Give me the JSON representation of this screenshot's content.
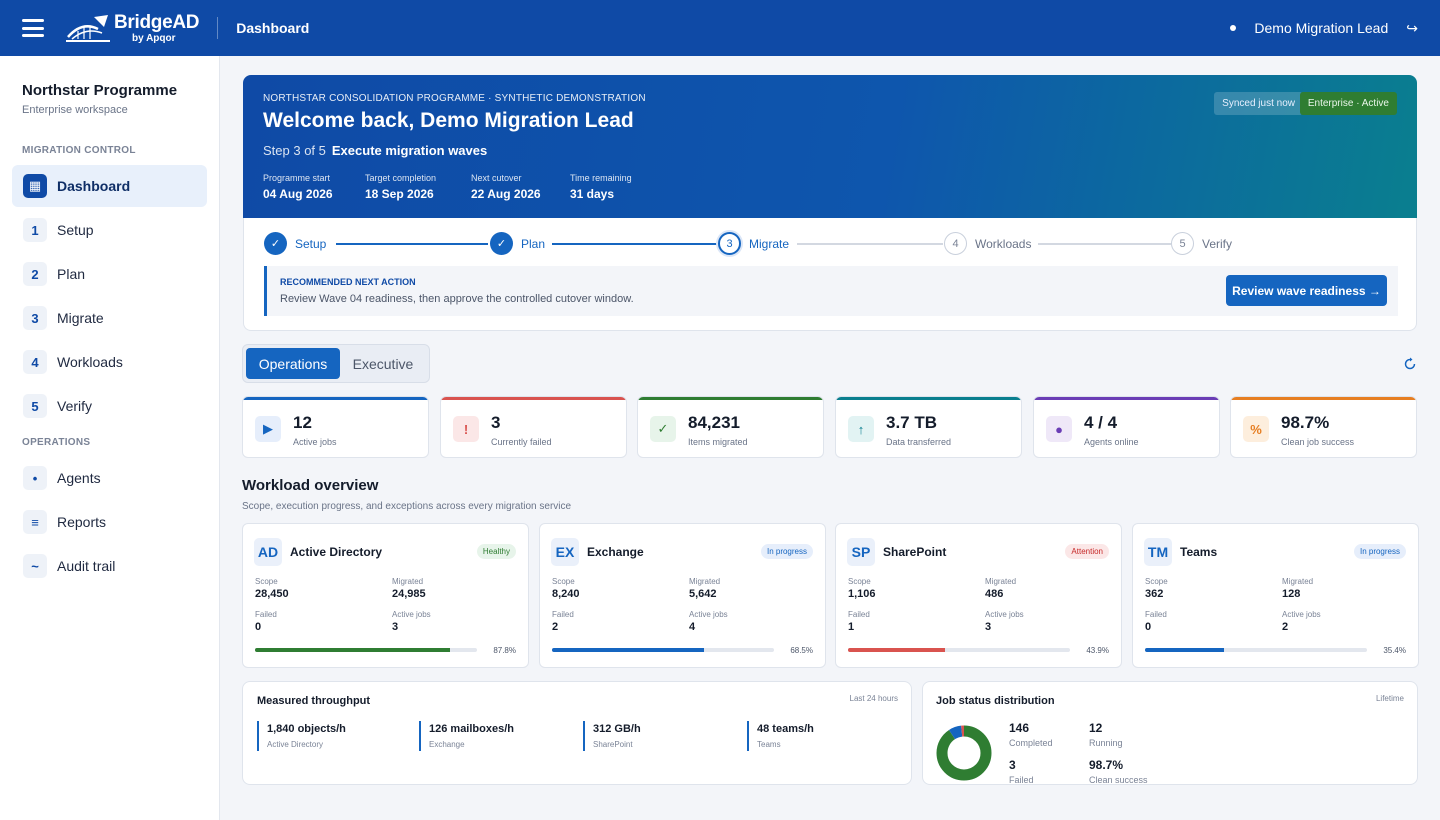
{
  "colors": {
    "brand": "#0f4aa6",
    "accent": "#1565c0",
    "success": "#2f7d32",
    "danger": "#c62828",
    "teal": "#0a7f8f",
    "purple": "#6a3db5",
    "orange": "#e67e22"
  },
  "topbar": {
    "menu_icon": "hamburger-icon",
    "logo_name": "BridgeAD",
    "logo_sub": "by Apqor",
    "page_title": "Dashboard",
    "user_name": "Demo Migration Lead",
    "logout_icon": "logout-arrow-icon",
    "logout_glyph": "↪"
  },
  "sidebar": {
    "org_name": "Northstar Programme",
    "org_sub": "Enterprise workspace",
    "section_migration": "MIGRATION CONTROL",
    "section_operations": "OPERATIONS",
    "items": [
      {
        "badge": "▦",
        "label": "Dashboard",
        "active": true
      },
      {
        "badge": "1",
        "label": "Setup"
      },
      {
        "badge": "2",
        "label": "Plan"
      },
      {
        "badge": "3",
        "label": "Migrate"
      },
      {
        "badge": "4",
        "label": "Workloads"
      },
      {
        "badge": "5",
        "label": "Verify"
      },
      {
        "badge": "•",
        "label": "Agents"
      },
      {
        "badge": "≡",
        "label": "Reports"
      },
      {
        "badge": "~",
        "label": "Audit trail"
      }
    ]
  },
  "hero": {
    "eyebrow": "NORTHSTAR CONSOLIDATION PROGRAMME · SYNTHETIC DEMONSTRATION",
    "title": "Welcome back, Demo Migration Lead",
    "step_prefix": "Step 3 of 5",
    "step_name": "Execute migration waves",
    "sync_pill": "Synced just now",
    "plan_pill": "Enterprise · Active",
    "meta": [
      {
        "label": "Programme start",
        "value": "04 Aug 2026"
      },
      {
        "label": "Target completion",
        "value": "18 Sep 2026"
      },
      {
        "label": "Next cutover",
        "value": "22 Aug 2026"
      },
      {
        "label": "Time remaining",
        "value": "31 days"
      }
    ]
  },
  "stepper": {
    "steps": [
      {
        "mark": "✓",
        "label": "Setup",
        "state": "done"
      },
      {
        "mark": "✓",
        "label": "Plan",
        "state": "done"
      },
      {
        "mark": "3",
        "label": "Migrate",
        "state": "current"
      },
      {
        "mark": "4",
        "label": "Workloads",
        "state": "todo"
      },
      {
        "mark": "5",
        "label": "Verify",
        "state": "todo"
      }
    ]
  },
  "next_action": {
    "heading": "RECOMMENDED NEXT ACTION",
    "text": "Review Wave 04 readiness, then approve the controlled cutover window.",
    "button": "Review wave readiness →"
  },
  "tabs": [
    {
      "label": "Operations",
      "active": true
    },
    {
      "label": "Executive",
      "active": false
    }
  ],
  "refresh_icon": "refresh-icon",
  "kpis": [
    {
      "icon": "▶",
      "icon_name": "play-icon",
      "value": "12",
      "label": "Active jobs",
      "color": "#1565c0",
      "bg": "#e6eefb"
    },
    {
      "icon": "!",
      "icon_name": "alert-icon",
      "value": "3",
      "label": "Currently failed",
      "color": "#d9534f",
      "bg": "#fbe7e7"
    },
    {
      "icon": "✓",
      "icon_name": "check-icon",
      "value": "84,231",
      "label": "Items migrated",
      "color": "#2f7d32",
      "bg": "#e7f4ea"
    },
    {
      "icon": "↑",
      "icon_name": "upload-arrow-icon",
      "value": "3.7 TB",
      "label": "Data transferred",
      "color": "#0a7f8f",
      "bg": "#e2f3f3"
    },
    {
      "icon": "●",
      "icon_name": "agent-dot-icon",
      "value": "4 / 4",
      "label": "Agents online",
      "color": "#6a3db5",
      "bg": "#efe8f8"
    },
    {
      "icon": "%",
      "icon_name": "percent-icon",
      "value": "98.7%",
      "label": "Clean job success",
      "color": "#e67e22",
      "bg": "#fdeedd"
    }
  ],
  "workload_overview": {
    "title": "Workload overview",
    "subtitle": "Scope, execution progress, and exceptions across every migration service",
    "labels": {
      "scope": "Scope",
      "migrated": "Migrated",
      "failed": "Failed",
      "active_jobs": "Active jobs"
    },
    "cards": [
      {
        "abbr": "AD",
        "name": "Active Directory",
        "status": "Healthy",
        "status_kind": "healthy",
        "scope": "28,450",
        "migrated": "24,985",
        "failed": "0",
        "active_jobs": "3",
        "progress": 87.8,
        "progress_label": "87.8%",
        "bar_color": "#2f7d32"
      },
      {
        "abbr": "EX",
        "name": "Exchange",
        "status": "In progress",
        "status_kind": "progress",
        "scope": "8,240",
        "migrated": "5,642",
        "failed": "2",
        "active_jobs": "4",
        "progress": 68.5,
        "progress_label": "68.5%",
        "bar_color": "#1565c0"
      },
      {
        "abbr": "SP",
        "name": "SharePoint",
        "status": "Attention",
        "status_kind": "attention",
        "scope": "1,106",
        "migrated": "486",
        "failed": "1",
        "active_jobs": "3",
        "progress": 43.9,
        "progress_label": "43.9%",
        "bar_color": "#d9534f"
      },
      {
        "abbr": "TM",
        "name": "Teams",
        "status": "In progress",
        "status_kind": "progress",
        "scope": "362",
        "migrated": "128",
        "failed": "0",
        "active_jobs": "2",
        "progress": 35.4,
        "progress_label": "35.4%",
        "bar_color": "#1565c0"
      }
    ]
  },
  "throughput": {
    "title": "Measured throughput",
    "hint": "Last 24 hours",
    "items": [
      {
        "value": "1,840 objects/h",
        "label": "Active Directory"
      },
      {
        "value": "126 mailboxes/h",
        "label": "Exchange"
      },
      {
        "value": "312 GB/h",
        "label": "SharePoint"
      },
      {
        "value": "48 teams/h",
        "label": "Teams"
      }
    ]
  },
  "job_status": {
    "title": "Job status distribution",
    "hint": "Lifetime",
    "stats": [
      {
        "value": "146",
        "label": "Completed"
      },
      {
        "value": "12",
        "label": "Running"
      },
      {
        "value": "3",
        "label": "Failed"
      },
      {
        "value": "98.7%",
        "label": "Clean success"
      }
    ],
    "donut": [
      {
        "name": "Completed",
        "value": 146,
        "color": "#2f7d32"
      },
      {
        "name": "Running",
        "value": 12,
        "color": "#1565c0"
      },
      {
        "name": "Failed",
        "value": 3,
        "color": "#d9534f"
      }
    ]
  }
}
